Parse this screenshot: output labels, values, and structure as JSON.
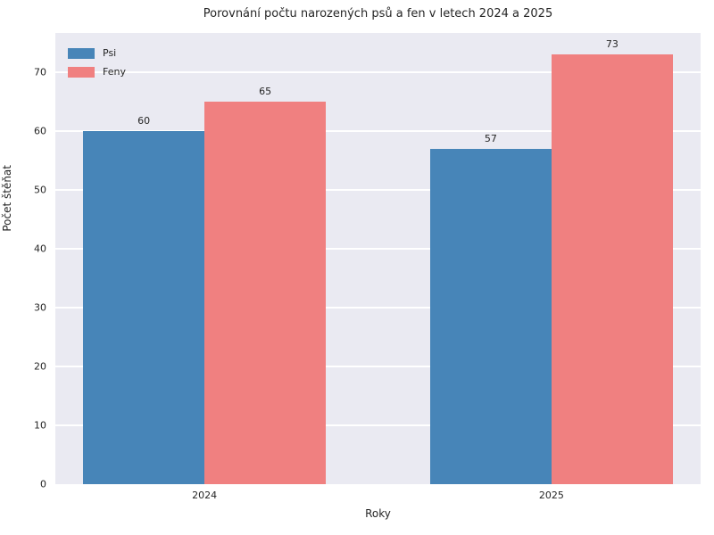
{
  "chart_data": {
    "type": "bar",
    "title": "Porovnání počtu narozených psů a fen v letech 2024 a 2025",
    "xlabel": "Roky",
    "ylabel": "Počet štěňat",
    "categories": [
      "2024",
      "2025"
    ],
    "series": [
      {
        "name": "Psi",
        "color": "#4785b8",
        "values": [
          60,
          57
        ]
      },
      {
        "name": "Feny",
        "color": "#f08080",
        "values": [
          65,
          73
        ]
      }
    ],
    "value_labels": [
      [
        "60",
        "57"
      ],
      [
        "65",
        "73"
      ]
    ],
    "yticks": [
      0,
      10,
      20,
      30,
      40,
      50,
      60,
      70
    ],
    "ylim": [
      0,
      76.65
    ],
    "xlim": [
      -0.43,
      1.43
    ],
    "bar_width": 0.35,
    "grid": true,
    "legend_position": "upper left",
    "colors": {
      "plot_background": "#eaeaf2",
      "grid": "#ffffff",
      "text": "#262626",
      "figure_background": "#ffffff"
    }
  }
}
